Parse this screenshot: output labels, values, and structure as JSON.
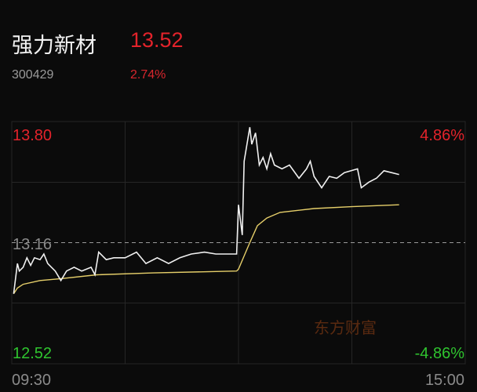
{
  "header": {
    "name": "强力新材",
    "price": "13.52",
    "code": "300429",
    "change_pct": "2.74%"
  },
  "watermark": "东方财富",
  "colors": {
    "up": "#e3232b",
    "down": "#2fc42f",
    "price_line": "#f0f0f0",
    "avg_line": "#e6cf6a",
    "grid": "#262626",
    "neutral": "#8a8a8a",
    "watermark": "#5a2a10",
    "background": "#0b0b0b"
  },
  "chart_data": {
    "type": "line",
    "ylim": [
      12.52,
      13.8
    ],
    "y_labels_left": {
      "top": "13.80",
      "mid": "13.16",
      "bottom": "12.52"
    },
    "y_labels_right": {
      "top": "4.86%",
      "bottom": "-4.86%"
    },
    "x_labels": {
      "start": "09:30",
      "end": "15:00"
    },
    "prev_close": 13.16,
    "grid": true,
    "series": [
      {
        "key": "price",
        "points": [
          [
            "09:31",
            12.89
          ],
          [
            "09:33",
            13.05
          ],
          [
            "09:34",
            13.01
          ],
          [
            "09:36",
            13.03
          ],
          [
            "09:38",
            13.08
          ],
          [
            "09:40",
            13.04
          ],
          [
            "09:42",
            13.08
          ],
          [
            "09:45",
            13.07
          ],
          [
            "09:47",
            13.1
          ],
          [
            "09:49",
            13.05
          ],
          [
            "09:51",
            13.03
          ],
          [
            "09:53",
            13.01
          ],
          [
            "09:56",
            12.96
          ],
          [
            "09:59",
            13.01
          ],
          [
            "10:03",
            13.03
          ],
          [
            "10:07",
            13.01
          ],
          [
            "10:12",
            13.03
          ],
          [
            "10:14",
            12.99
          ],
          [
            "10:16",
            13.11
          ],
          [
            "10:20",
            13.07
          ],
          [
            "10:24",
            13.08
          ],
          [
            "10:30",
            13.08
          ],
          [
            "10:36",
            13.11
          ],
          [
            "10:41",
            13.05
          ],
          [
            "10:47",
            13.08
          ],
          [
            "10:53",
            13.05
          ],
          [
            "10:59",
            13.08
          ],
          [
            "11:05",
            13.1
          ],
          [
            "11:12",
            13.11
          ],
          [
            "11:18",
            13.1
          ],
          [
            "11:24",
            13.1
          ],
          [
            "11:29",
            13.1
          ],
          [
            "13:00",
            13.36
          ],
          [
            "13:02",
            13.2
          ],
          [
            "13:03",
            13.59
          ],
          [
            "13:06",
            13.77
          ],
          [
            "13:07",
            13.68
          ],
          [
            "13:09",
            13.74
          ],
          [
            "13:11",
            13.57
          ],
          [
            "13:13",
            13.61
          ],
          [
            "13:15",
            13.55
          ],
          [
            "13:17",
            13.63
          ],
          [
            "13:19",
            13.57
          ],
          [
            "13:23",
            13.55
          ],
          [
            "13:27",
            13.57
          ],
          [
            "13:32",
            13.5
          ],
          [
            "13:36",
            13.55
          ],
          [
            "13:38",
            13.59
          ],
          [
            "13:40",
            13.51
          ],
          [
            "13:44",
            13.45
          ],
          [
            "13:48",
            13.51
          ],
          [
            "13:52",
            13.5
          ],
          [
            "13:56",
            13.53
          ],
          [
            "14:03",
            13.55
          ],
          [
            "14:05",
            13.45
          ],
          [
            "14:09",
            13.48
          ],
          [
            "14:13",
            13.5
          ],
          [
            "14:17",
            13.54
          ],
          [
            "14:21",
            13.53
          ],
          [
            "14:25",
            13.52
          ]
        ]
      },
      {
        "key": "average",
        "points": [
          [
            "09:31",
            12.89
          ],
          [
            "09:33",
            12.92
          ],
          [
            "09:36",
            12.94
          ],
          [
            "09:45",
            12.96
          ],
          [
            "09:56",
            12.97
          ],
          [
            "10:15",
            12.99
          ],
          [
            "10:45",
            13.0
          ],
          [
            "11:29",
            13.01
          ],
          [
            "13:00",
            13.02
          ],
          [
            "13:03",
            13.09
          ],
          [
            "13:06",
            13.16
          ],
          [
            "13:10",
            13.25
          ],
          [
            "13:15",
            13.29
          ],
          [
            "13:22",
            13.32
          ],
          [
            "13:40",
            13.34
          ],
          [
            "14:00",
            13.35
          ],
          [
            "14:25",
            13.36
          ]
        ]
      }
    ]
  }
}
